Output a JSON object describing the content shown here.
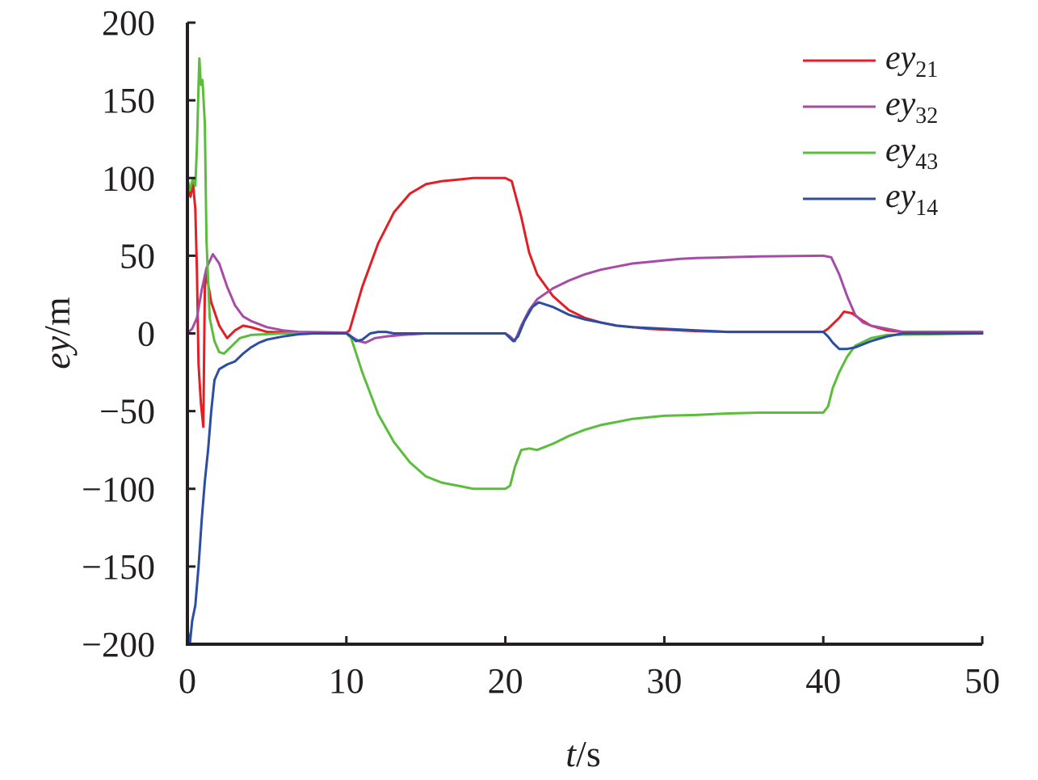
{
  "chart_data": {
    "type": "line",
    "title": "",
    "xlabel": {
      "main": "t",
      "unit": "/s"
    },
    "ylabel": {
      "main": "ey",
      "unit": "/m"
    },
    "xlim": [
      0,
      50
    ],
    "ylim": [
      -200,
      200
    ],
    "x_ticks": [
      "0",
      "10",
      "20",
      "30",
      "40",
      "50"
    ],
    "y_ticks": [
      "200",
      "150",
      "100",
      "50",
      "0",
      "−50",
      "−100",
      "−150",
      "−200"
    ],
    "grid": false,
    "legend_position": "top-right",
    "series": [
      {
        "name": "ey21",
        "name_base": "ey",
        "name_sub": "21",
        "color": "#e31e24",
        "points": [
          [
            0,
            95
          ],
          [
            0.2,
            88
          ],
          [
            0.35,
            97
          ],
          [
            0.5,
            80
          ],
          [
            0.6,
            40
          ],
          [
            0.7,
            -20
          ],
          [
            0.85,
            -45
          ],
          [
            1.0,
            -60
          ],
          [
            1.1,
            30
          ],
          [
            1.2,
            38
          ],
          [
            1.5,
            20
          ],
          [
            2.0,
            5
          ],
          [
            2.5,
            -3
          ],
          [
            3.0,
            2
          ],
          [
            3.5,
            5
          ],
          [
            4.0,
            4
          ],
          [
            5.0,
            1
          ],
          [
            7.0,
            0.5
          ],
          [
            10.0,
            0.5
          ],
          [
            10.2,
            2
          ],
          [
            11.0,
            30
          ],
          [
            12.0,
            58
          ],
          [
            13.0,
            78
          ],
          [
            14.0,
            90
          ],
          [
            15.0,
            96
          ],
          [
            16.0,
            98
          ],
          [
            17.0,
            99
          ],
          [
            18.0,
            100
          ],
          [
            20.0,
            100
          ],
          [
            20.4,
            98
          ],
          [
            21.0,
            75
          ],
          [
            21.5,
            52
          ],
          [
            22.0,
            38
          ],
          [
            23.0,
            24
          ],
          [
            24.0,
            15
          ],
          [
            25.0,
            10
          ],
          [
            26.0,
            7
          ],
          [
            27.0,
            5
          ],
          [
            28.0,
            4
          ],
          [
            29.0,
            3
          ],
          [
            30.0,
            2.5
          ],
          [
            32.0,
            1.5
          ],
          [
            34.0,
            1
          ],
          [
            40.0,
            1
          ],
          [
            40.3,
            3
          ],
          [
            41.0,
            10
          ],
          [
            41.3,
            14
          ],
          [
            41.8,
            13
          ],
          [
            42.5,
            8
          ],
          [
            43.0,
            5
          ],
          [
            44.0,
            2
          ],
          [
            45.0,
            1
          ],
          [
            50.0,
            1
          ]
        ]
      },
      {
        "name": "ey32",
        "name_base": "ey",
        "name_sub": "32",
        "color": "#a64ca6",
        "points": [
          [
            0,
            0
          ],
          [
            0.3,
            3
          ],
          [
            0.6,
            10
          ],
          [
            0.9,
            28
          ],
          [
            1.2,
            42
          ],
          [
            1.6,
            51
          ],
          [
            2.0,
            45
          ],
          [
            2.5,
            30
          ],
          [
            3.0,
            18
          ],
          [
            3.5,
            11
          ],
          [
            4.0,
            8
          ],
          [
            5.0,
            4
          ],
          [
            6.0,
            2
          ],
          [
            7.0,
            1
          ],
          [
            10.0,
            0.5
          ],
          [
            10.3,
            -2
          ],
          [
            10.8,
            -5
          ],
          [
            11.2,
            -6
          ],
          [
            11.8,
            -3
          ],
          [
            12.5,
            -2
          ],
          [
            13.5,
            -1
          ],
          [
            15.0,
            0
          ],
          [
            20.0,
            0
          ],
          [
            20.3,
            -2
          ],
          [
            20.6,
            -5
          ],
          [
            21.0,
            5
          ],
          [
            21.5,
            15
          ],
          [
            22.0,
            22
          ],
          [
            23.0,
            29
          ],
          [
            24.0,
            34
          ],
          [
            25.0,
            38
          ],
          [
            26.0,
            41
          ],
          [
            27.0,
            43
          ],
          [
            28.0,
            45
          ],
          [
            29.0,
            46
          ],
          [
            30.0,
            47
          ],
          [
            31.0,
            48
          ],
          [
            32.0,
            48.5
          ],
          [
            34.0,
            49
          ],
          [
            36.0,
            49.5
          ],
          [
            40.0,
            50
          ],
          [
            40.5,
            49
          ],
          [
            41.0,
            38
          ],
          [
            41.5,
            24
          ],
          [
            42.0,
            12
          ],
          [
            42.5,
            7
          ],
          [
            43.0,
            5
          ],
          [
            44.0,
            3
          ],
          [
            45.0,
            1
          ],
          [
            50.0,
            1
          ]
        ]
      },
      {
        "name": "ey43",
        "name_base": "ey",
        "name_sub": "43",
        "color": "#5cbc3b",
        "points": [
          [
            0,
            100
          ],
          [
            0.15,
            92
          ],
          [
            0.35,
            100
          ],
          [
            0.5,
            95
          ],
          [
            0.6,
            120
          ],
          [
            0.7,
            160
          ],
          [
            0.75,
            177
          ],
          [
            0.85,
            160
          ],
          [
            0.95,
            163
          ],
          [
            1.1,
            135
          ],
          [
            1.2,
            60
          ],
          [
            1.4,
            10
          ],
          [
            1.7,
            -5
          ],
          [
            2.0,
            -12
          ],
          [
            2.3,
            -13
          ],
          [
            2.8,
            -8
          ],
          [
            3.3,
            -3
          ],
          [
            4.0,
            -1
          ],
          [
            6.0,
            0
          ],
          [
            10.0,
            0
          ],
          [
            10.3,
            -3
          ],
          [
            11.0,
            -25
          ],
          [
            12.0,
            -52
          ],
          [
            13.0,
            -70
          ],
          [
            14.0,
            -83
          ],
          [
            15.0,
            -92
          ],
          [
            16.0,
            -96
          ],
          [
            17.0,
            -98
          ],
          [
            18.0,
            -100
          ],
          [
            20.0,
            -100
          ],
          [
            20.3,
            -98
          ],
          [
            20.6,
            -86
          ],
          [
            21.0,
            -75
          ],
          [
            21.5,
            -74
          ],
          [
            22.0,
            -75
          ],
          [
            23.0,
            -71
          ],
          [
            24.0,
            -66
          ],
          [
            25.0,
            -62
          ],
          [
            26.0,
            -59
          ],
          [
            27.0,
            -57
          ],
          [
            28.0,
            -55
          ],
          [
            30.0,
            -53
          ],
          [
            32.0,
            -52.5
          ],
          [
            34.0,
            -51.5
          ],
          [
            36.0,
            -51
          ],
          [
            40.0,
            -51
          ],
          [
            40.3,
            -47
          ],
          [
            40.6,
            -35
          ],
          [
            41.0,
            -25
          ],
          [
            41.5,
            -15
          ],
          [
            42.0,
            -8
          ],
          [
            43.0,
            -3
          ],
          [
            44.0,
            -1
          ],
          [
            50.0,
            0
          ]
        ]
      },
      {
        "name": "ey14",
        "name_base": "ey",
        "name_sub": "14",
        "color": "#2b4ea2",
        "points": [
          [
            0,
            -190
          ],
          [
            0.15,
            -200
          ],
          [
            0.3,
            -185
          ],
          [
            0.5,
            -175
          ],
          [
            0.7,
            -150
          ],
          [
            0.9,
            -120
          ],
          [
            1.1,
            -95
          ],
          [
            1.3,
            -75
          ],
          [
            1.5,
            -50
          ],
          [
            1.7,
            -30
          ],
          [
            2.0,
            -23
          ],
          [
            2.5,
            -20
          ],
          [
            3.0,
            -18
          ],
          [
            3.5,
            -13
          ],
          [
            4.0,
            -9
          ],
          [
            4.5,
            -6
          ],
          [
            5.0,
            -4
          ],
          [
            6.0,
            -2
          ],
          [
            7.0,
            -0.5
          ],
          [
            8.0,
            0
          ],
          [
            10.0,
            0
          ],
          [
            10.3,
            -2
          ],
          [
            10.6,
            -5
          ],
          [
            11.0,
            -4
          ],
          [
            11.5,
            0
          ],
          [
            12.0,
            1
          ],
          [
            12.5,
            1
          ],
          [
            13.0,
            0
          ],
          [
            15.0,
            0
          ],
          [
            20.0,
            0
          ],
          [
            20.3,
            -3
          ],
          [
            20.5,
            -5
          ],
          [
            20.8,
            -2
          ],
          [
            21.2,
            8
          ],
          [
            21.7,
            17
          ],
          [
            22.1,
            20
          ],
          [
            23.0,
            17
          ],
          [
            24.0,
            12
          ],
          [
            25.0,
            9
          ],
          [
            26.0,
            7
          ],
          [
            27.0,
            5
          ],
          [
            28.0,
            4
          ],
          [
            30.0,
            3
          ],
          [
            32.0,
            2
          ],
          [
            34.0,
            1
          ],
          [
            40.0,
            1
          ],
          [
            40.3,
            -2
          ],
          [
            40.6,
            -6
          ],
          [
            41.0,
            -10
          ],
          [
            41.5,
            -10
          ],
          [
            42.0,
            -9
          ],
          [
            43.0,
            -5
          ],
          [
            44.0,
            -2
          ],
          [
            45.0,
            0
          ],
          [
            50.0,
            0
          ]
        ]
      }
    ]
  }
}
